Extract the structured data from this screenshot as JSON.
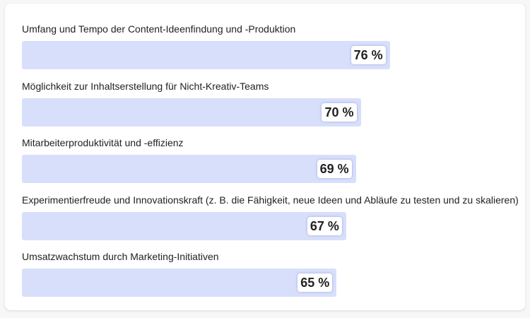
{
  "chart_data": {
    "type": "bar",
    "orientation": "horizontal",
    "title": "",
    "xlabel": "",
    "ylabel": "",
    "xlim": [
      0,
      100
    ],
    "unit": "%",
    "bar_color": "#d8dffb",
    "categories": [
      "Umfang und Tempo der Content-Ideenfindung und -Produktion",
      "Möglichkeit zur Inhaltserstellung für Nicht-Kreativ-Teams",
      "Mitarbeiterproduktivität und -effizienz",
      "Experimentierfreude und Innovationskraft (z. B. die Fähigkeit, neue Ideen und Abläufe zu testen und zu skalieren)",
      "Umsatzwachstum durch Marketing-Initiativen"
    ],
    "values": [
      76,
      70,
      69,
      67,
      65
    ],
    "value_labels": [
      "76 %",
      "70 %",
      "69 %",
      "67 %",
      "65 %"
    ]
  }
}
